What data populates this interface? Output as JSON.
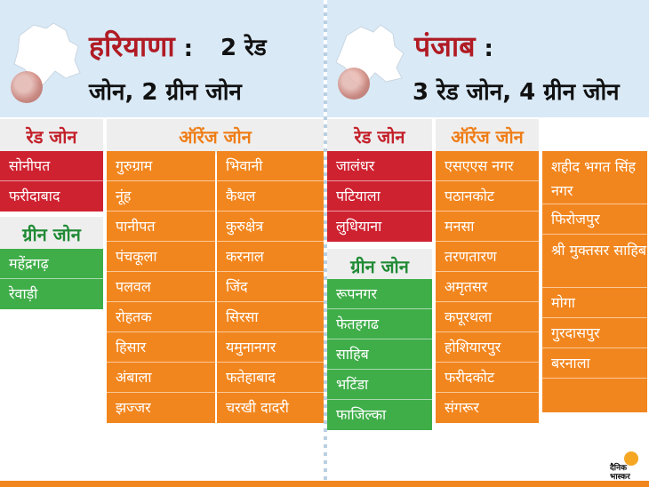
{
  "haryana": {
    "title": "हरियाणा",
    "sep": ":",
    "line1": "2 रेड",
    "line2": "जोन, 2 ग्रीन जोन",
    "red_header": "रेड जोन",
    "red": [
      "सोनीपत",
      "फरीदाबाद"
    ],
    "green_header": "ग्रीन जोन",
    "green": [
      "महेंद्रगढ़",
      "रेवाड़ी"
    ],
    "orange_header": "ऑरेंज जोन",
    "orange_col1": [
      "गुरुग्राम",
      "नूंह",
      "पानीपत",
      "पंचकूला",
      "पलवल",
      "रोहतक",
      "हिसार",
      "अंबाला",
      "झज्जर"
    ],
    "orange_col2": [
      "भिवानी",
      "कैथल",
      "कुरुक्षेत्र",
      "करनाल",
      "जिंद",
      "सिरसा",
      "यमुनानगर",
      "फतेहाबाद",
      "चरखी दादरी"
    ]
  },
  "punjab": {
    "title": "पंजाब",
    "sep": ":",
    "line2": "3 रेड जोन, 4 ग्रीन जोन",
    "red_header": "रेड जोन",
    "red": [
      "जालंधर",
      "पटियाला",
      "लुधियाना"
    ],
    "green_header": "ग्रीन जोन",
    "green": [
      "रूपनगर",
      "फेतहगढ",
      "साहिब",
      "भटिंडा",
      "फाजिल्का"
    ],
    "orange_header": "ऑरेंज जोन",
    "orange_col1": [
      "एसएएस नगर",
      "पठानकोट",
      "मनसा",
      "तरणतारण",
      "अमृतसर",
      "कपूरथला",
      "होशियारपुर",
      "फरीदकोट",
      "संगरूर"
    ],
    "orange_col2": [
      "शहीद भगत सिंह नगर",
      "फिरोजपुर",
      "श्री मुक्तसर साहिब",
      "मोगा",
      "गुरदासपुर",
      "बरनाला"
    ]
  },
  "logo": {
    "line1": "दैनिक",
    "line2": "भास्कर"
  },
  "colors": {
    "red": "#cf2231",
    "orange": "#f2861e",
    "green": "#3fae49",
    "header_bg": "#d9e9f6"
  }
}
